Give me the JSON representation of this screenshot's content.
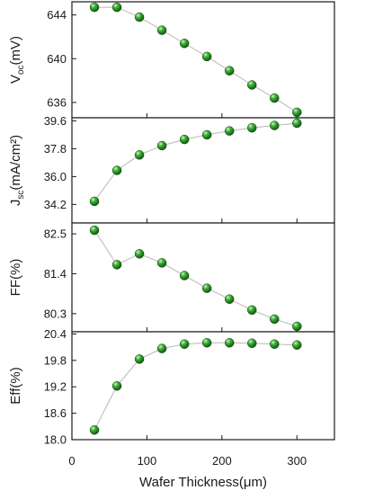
{
  "chart_data": [
    {
      "type": "scatter",
      "ylabel": "V",
      "ylabel_sub": "oc",
      "ylabel_unit": "(mV)",
      "ylim": [
        634.6,
        645.2
      ],
      "yticks": [
        636,
        640,
        644
      ],
      "ytick_labels": [
        "636",
        "640",
        "644"
      ],
      "x": [
        30,
        60,
        90,
        120,
        150,
        180,
        210,
        240,
        270,
        300
      ],
      "y": [
        644.7,
        644.7,
        643.8,
        642.6,
        641.4,
        640.2,
        638.9,
        637.6,
        636.4,
        635.1
      ],
      "xlim": [
        0,
        350
      ],
      "line_color": "#b8b8b8",
      "marker_color": "#1f8a1f"
    },
    {
      "type": "scatter",
      "ylabel": "J",
      "ylabel_sub": "sc",
      "ylabel_unit": "(mA/cm²)",
      "ylim": [
        33.0,
        39.8
      ],
      "yticks": [
        34.2,
        36.0,
        37.8,
        39.6
      ],
      "ytick_labels": [
        "34.2",
        "36.0",
        "37.8",
        "39.6"
      ],
      "x": [
        30,
        60,
        90,
        120,
        150,
        180,
        210,
        240,
        270,
        300
      ],
      "y": [
        34.4,
        36.4,
        37.4,
        38.0,
        38.4,
        38.7,
        38.95,
        39.15,
        39.3,
        39.45
      ],
      "xlim": [
        0,
        350
      ],
      "line_color": "#b8b8b8",
      "marker_color": "#1f8a1f"
    },
    {
      "type": "scatter",
      "ylabel": "FF(%)",
      "ylim": [
        79.8,
        82.8
      ],
      "yticks": [
        80.3,
        81.4,
        82.5
      ],
      "ytick_labels": [
        "80.3",
        "81.4",
        "82.5"
      ],
      "x": [
        30,
        60,
        90,
        120,
        150,
        180,
        210,
        240,
        270,
        300
      ],
      "y": [
        82.6,
        81.65,
        81.95,
        81.7,
        81.35,
        81.0,
        80.7,
        80.4,
        80.15,
        79.95
      ],
      "xlim": [
        0,
        350
      ],
      "line_color": "#b8b8b8",
      "marker_color": "#1f8a1f"
    },
    {
      "type": "scatter",
      "ylabel": "Eff(%)",
      "ylim": [
        18.0,
        20.45
      ],
      "yticks": [
        18.0,
        18.6,
        19.2,
        19.8,
        20.4
      ],
      "ytick_labels": [
        "18.0",
        "18.6",
        "19.2",
        "19.8",
        "20.4"
      ],
      "x": [
        30,
        60,
        90,
        120,
        150,
        180,
        210,
        240,
        270,
        300
      ],
      "y": [
        18.22,
        19.22,
        19.83,
        20.07,
        20.17,
        20.2,
        20.2,
        20.19,
        20.17,
        20.15
      ],
      "xlim": [
        0,
        350
      ],
      "xticks": [
        0,
        100,
        200,
        300
      ],
      "xtick_labels": [
        "0",
        "100",
        "200",
        "300"
      ],
      "xlabel": "Wafer Thickness(μm)",
      "line_color": "#b8b8b8",
      "marker_color": "#1f8a1f"
    }
  ]
}
